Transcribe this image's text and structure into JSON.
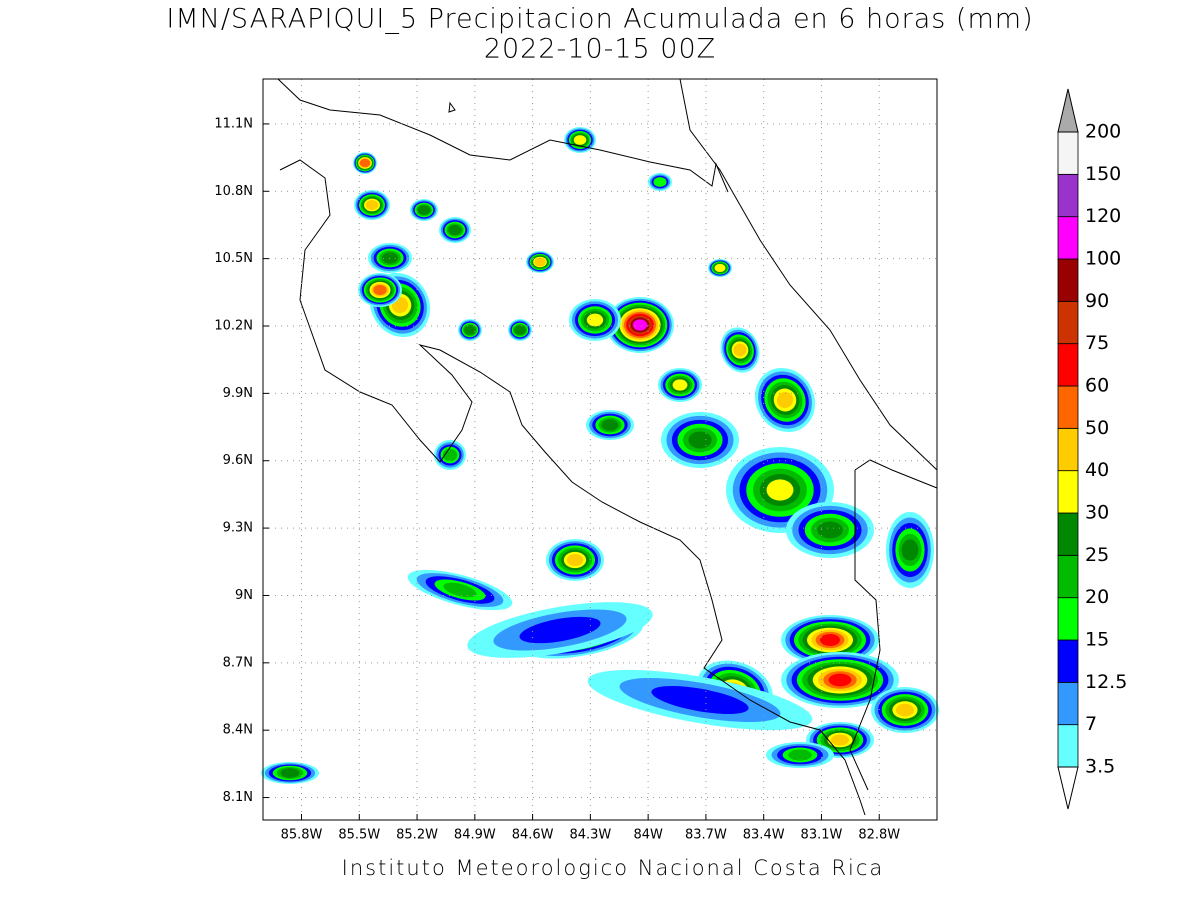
{
  "title": "IMN/SARAPIQUI_5 Precipitacion Acumulada en 6 horas (mm)",
  "subtitle": "2022-10-15 00Z",
  "footer": "Instituto Meteorologico Nacional Costa Rica",
  "map": {
    "lat_range": [
      8.0,
      11.3
    ],
    "lon_range": [
      -86.0,
      -82.5
    ],
    "lat_ticks": [
      {
        "value": 11.1,
        "label": "11.1N"
      },
      {
        "value": 10.8,
        "label": "10.8N"
      },
      {
        "value": 10.5,
        "label": "10.5N"
      },
      {
        "value": 10.2,
        "label": "10.2N"
      },
      {
        "value": 9.9,
        "label": "9.9N"
      },
      {
        "value": 9.6,
        "label": "9.6N"
      },
      {
        "value": 9.3,
        "label": "9.3N"
      },
      {
        "value": 9,
        "label": "9N"
      },
      {
        "value": 8.7,
        "label": "8.7N"
      },
      {
        "value": 8.4,
        "label": "8.4N"
      },
      {
        "value": 8.1,
        "label": "8.1N"
      }
    ],
    "lon_ticks": [
      {
        "value": -85.8,
        "label": "85.8W"
      },
      {
        "value": -85.5,
        "label": "85.5W"
      },
      {
        "value": -85.2,
        "label": "85.2W"
      },
      {
        "value": -84.9,
        "label": "84.9W"
      },
      {
        "value": -84.6,
        "label": "84.6W"
      },
      {
        "value": -84.3,
        "label": "84.3W"
      },
      {
        "value": -84,
        "label": "84W"
      },
      {
        "value": -83.7,
        "label": "83.7W"
      },
      {
        "value": -83.4,
        "label": "83.4W"
      },
      {
        "value": -83.1,
        "label": "83.1W"
      },
      {
        "value": -82.8,
        "label": "82.8W"
      }
    ]
  },
  "colorbar": {
    "levels": [
      3.5,
      7,
      12.5,
      15,
      20,
      25,
      30,
      40,
      50,
      60,
      75,
      90,
      100,
      120,
      150,
      200
    ],
    "colors": [
      "#66ffff",
      "#3399ff",
      "#0000ff",
      "#00ff00",
      "#00bb00",
      "#008800",
      "#ffff00",
      "#ffcc00",
      "#ff6600",
      "#ff0000",
      "#cc3300",
      "#990000",
      "#ff00ff",
      "#9933cc",
      "#f5f5f5"
    ],
    "over_color": "#aaaaaa",
    "under_color": "#ffffff"
  }
}
